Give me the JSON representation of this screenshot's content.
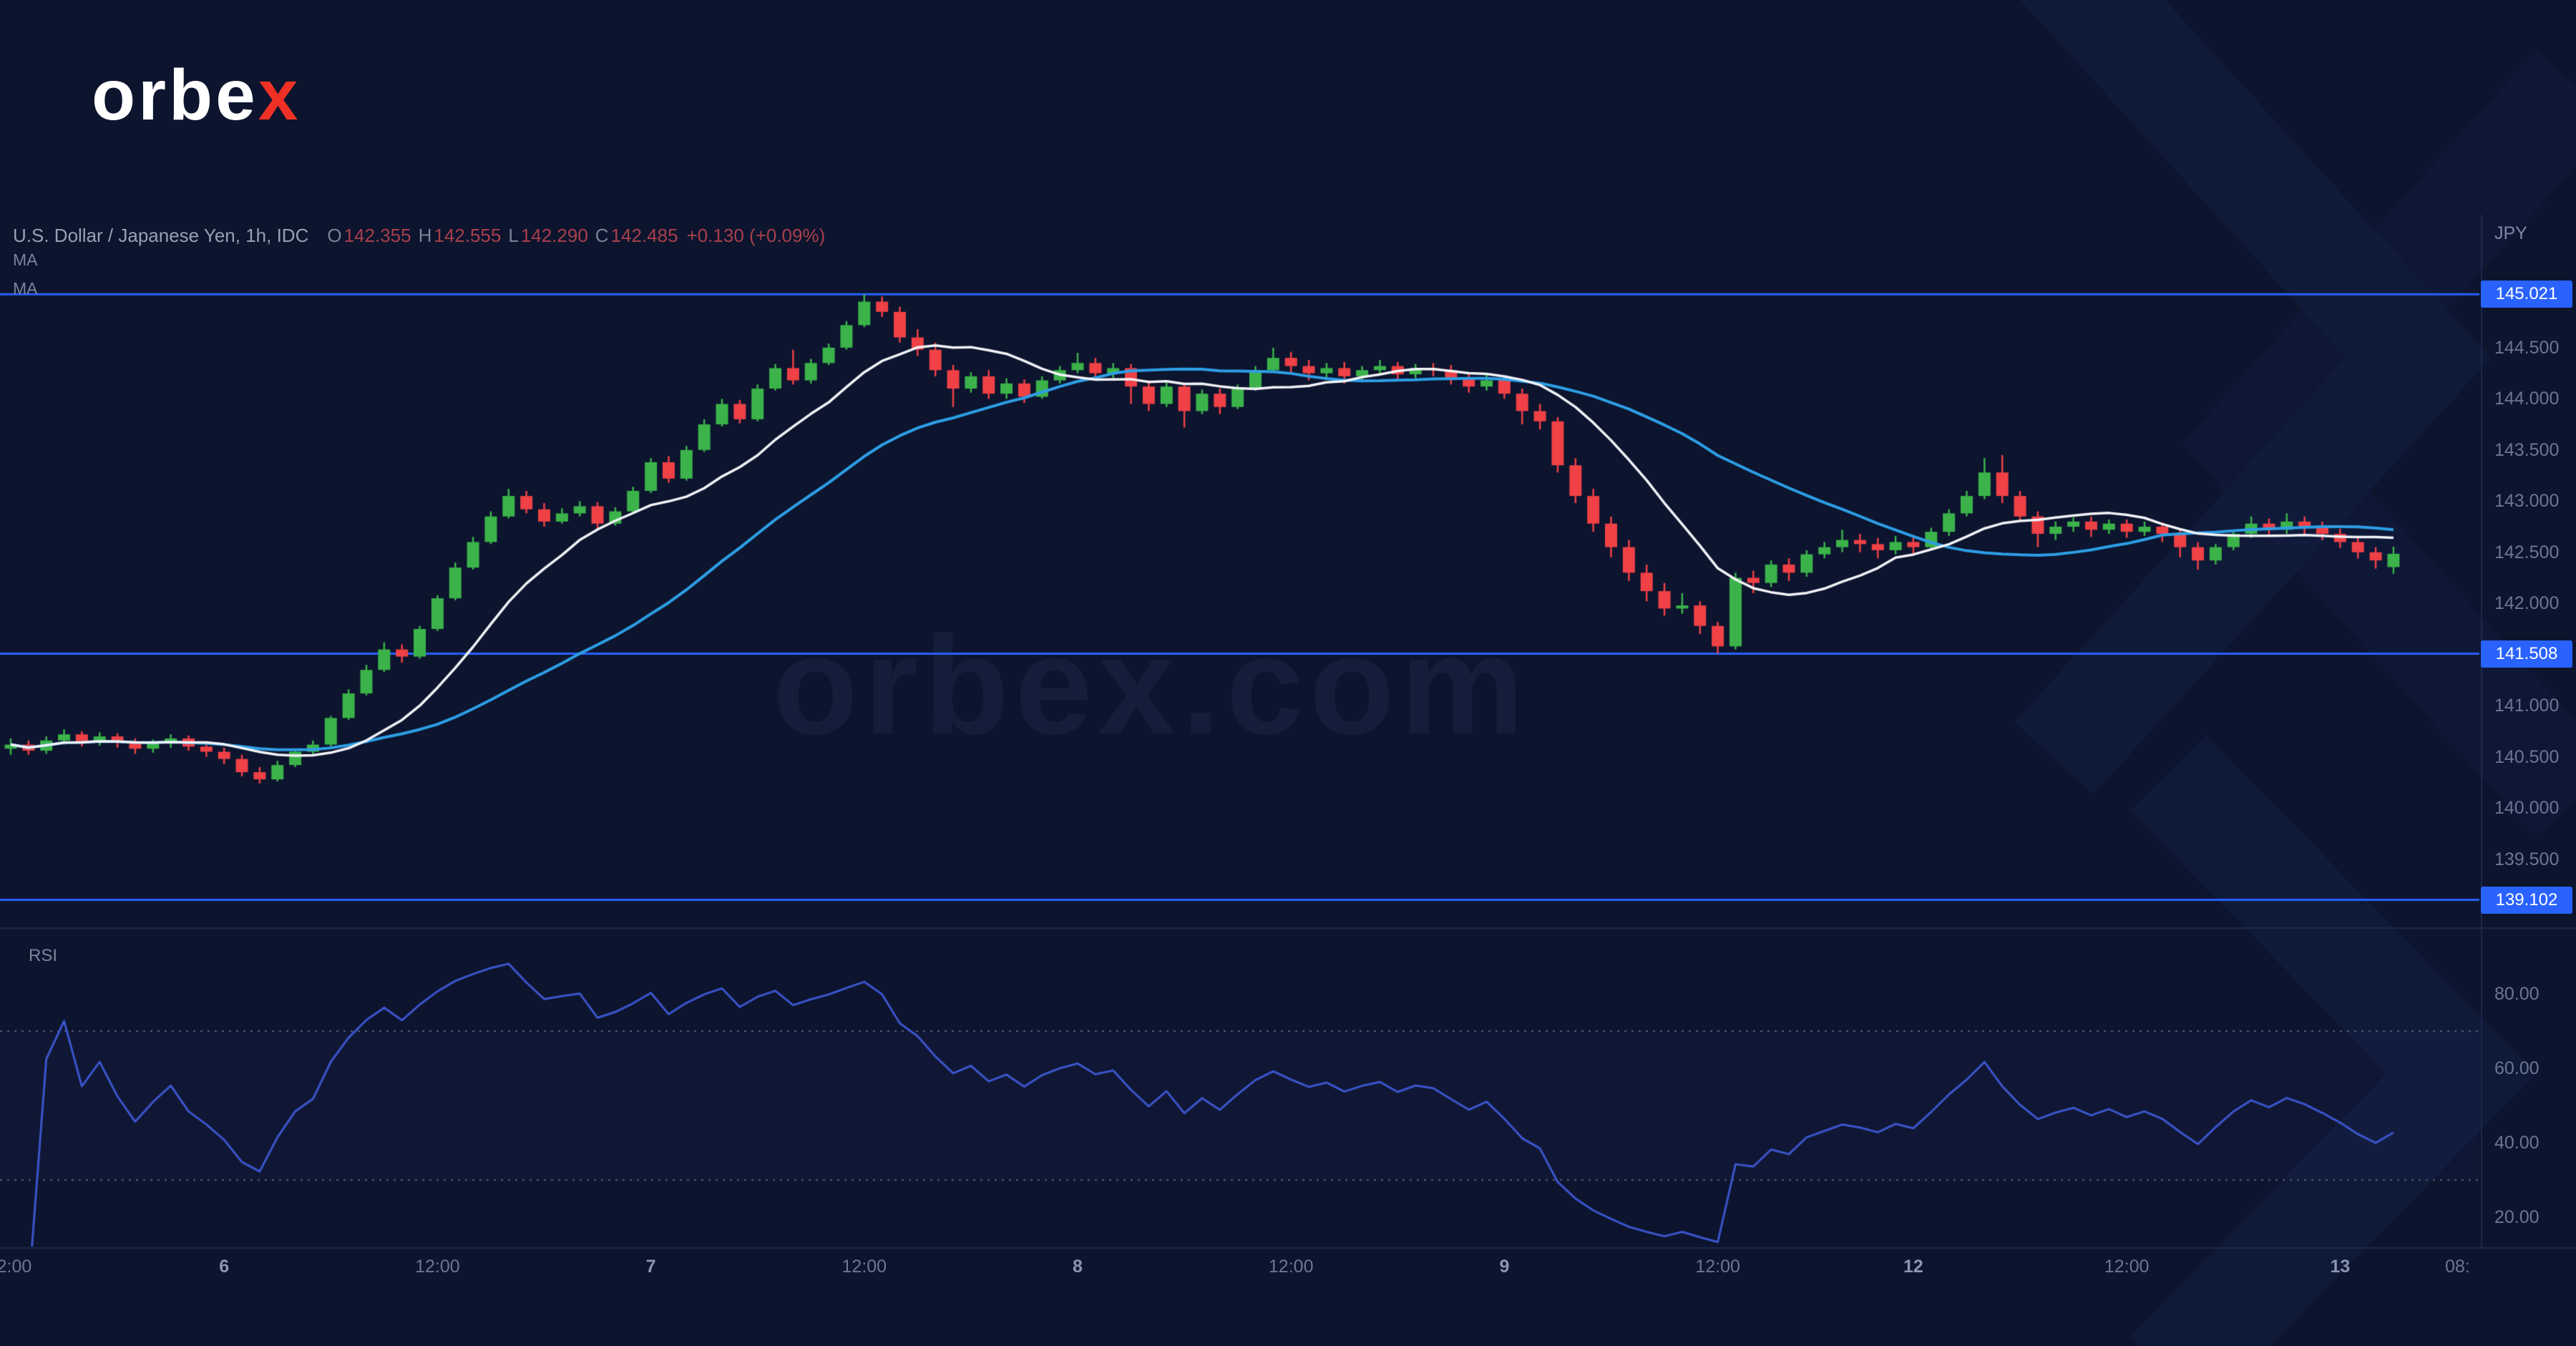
{
  "brand": {
    "logo_text": "orbe",
    "logo_accent": "x",
    "watermark": "orbex.com"
  },
  "header": {
    "symbol_title": "U.S. Dollar / Japanese Yen, 1h, IDC",
    "open_label": "O",
    "open": "142.355",
    "high_label": "H",
    "high": "142.555",
    "low_label": "L",
    "low": "142.290",
    "close_label": "C",
    "close": "142.485",
    "change": "+0.130 (+0.09%)",
    "ma_row1": "MA",
    "ma_row2": "MA"
  },
  "price_scale": {
    "currency_label": "JPY",
    "ticks": [
      {
        "text": "144.500",
        "value": 144.5
      },
      {
        "text": "144.000",
        "value": 144.0
      },
      {
        "text": "143.500",
        "value": 143.5
      },
      {
        "text": "143.000",
        "value": 143.0
      },
      {
        "text": "142.500",
        "value": 142.5
      },
      {
        "text": "142.000",
        "value": 142.0
      },
      {
        "text": "141.000",
        "value": 141.0
      },
      {
        "text": "140.500",
        "value": 140.5
      },
      {
        "text": "140.000",
        "value": 140.0
      },
      {
        "text": "139.500",
        "value": 139.5
      }
    ],
    "level_badges": [
      {
        "text": "145.021",
        "value": 145.021
      },
      {
        "text": "141.508",
        "value": 141.508
      },
      {
        "text": "139.102",
        "value": 139.102
      }
    ]
  },
  "rsi_pane": {
    "label": "RSI",
    "ticks": [
      {
        "text": "80.00",
        "value": 80
      },
      {
        "text": "60.00",
        "value": 60
      },
      {
        "text": "40.00",
        "value": 40
      },
      {
        "text": "20.00",
        "value": 20
      }
    ]
  },
  "time_scale": {
    "labels": [
      {
        "text": "2:00",
        "i": 0.2
      },
      {
        "text": "6",
        "i": 12,
        "major": true
      },
      {
        "text": "12:00",
        "i": 24
      },
      {
        "text": "7",
        "i": 36,
        "major": true
      },
      {
        "text": "12:00",
        "i": 48
      },
      {
        "text": "8",
        "i": 60,
        "major": true
      },
      {
        "text": "12:00",
        "i": 72
      },
      {
        "text": "9",
        "i": 84,
        "major": true
      },
      {
        "text": "12:00",
        "i": 96
      },
      {
        "text": "12",
        "i": 107,
        "major": true
      },
      {
        "text": "12:00",
        "i": 119
      },
      {
        "text": "13",
        "i": 131,
        "major": true
      },
      {
        "text": "08:",
        "i": 137.6
      }
    ]
  },
  "colors": {
    "background": "#0c142e",
    "up": "#3bb34a",
    "down": "#ef4146",
    "level_line": "#2962ff",
    "badge_bg": "#2962ff",
    "ma_fast": "#f2f4f8",
    "ma_slow": "#2e9fe6",
    "rsi_line": "#3c55cc",
    "rsi_level": "#545d78",
    "divider": "#1e2a4a",
    "axis_text": "#6c7694",
    "brand_red": "#ee3124"
  },
  "chart_data": {
    "type": "candlestick",
    "title": "U.S. Dollar / Japanese Yen, 1h, IDC",
    "symbol": "USD/JPY",
    "timeframe": "1h",
    "legend": [
      "MA fast (white)",
      "MA slow (blue)",
      "RSI"
    ],
    "price_range": [
      138.84,
      145.8
    ],
    "h_lines": [
      145.021,
      141.508,
      139.102
    ],
    "overlays": [
      {
        "name": "MA slow",
        "type": "SMA",
        "period": 25,
        "color": "#2e9fe6",
        "width": 4
      },
      {
        "name": "MA fast",
        "type": "SMA",
        "period": 10,
        "color": "#f2f4f8",
        "width": 3.5
      }
    ],
    "rsi": {
      "period": 14,
      "color": "#3c55cc",
      "levels": [
        70,
        30
      ]
    },
    "candles": [
      [
        140.58,
        140.68,
        140.52,
        140.62
      ],
      [
        140.62,
        140.66,
        140.52,
        140.56
      ],
      [
        140.56,
        140.7,
        140.53,
        140.66
      ],
      [
        140.66,
        140.77,
        140.62,
        140.72
      ],
      [
        140.72,
        140.75,
        140.6,
        140.65
      ],
      [
        140.65,
        140.74,
        140.61,
        140.7
      ],
      [
        140.7,
        140.73,
        140.59,
        140.64
      ],
      [
        140.64,
        140.68,
        140.53,
        140.58
      ],
      [
        140.58,
        140.67,
        140.54,
        140.63
      ],
      [
        140.63,
        140.72,
        140.59,
        140.68
      ],
      [
        140.68,
        140.71,
        140.56,
        140.6
      ],
      [
        140.6,
        140.65,
        140.5,
        140.55
      ],
      [
        140.55,
        140.59,
        140.43,
        140.48
      ],
      [
        140.48,
        140.52,
        140.31,
        140.35
      ],
      [
        140.35,
        140.4,
        140.24,
        140.28
      ],
      [
        140.28,
        140.46,
        140.26,
        140.42
      ],
      [
        140.42,
        140.58,
        140.4,
        140.55
      ],
      [
        140.55,
        140.66,
        140.52,
        140.62
      ],
      [
        140.62,
        140.9,
        140.6,
        140.88
      ],
      [
        140.88,
        141.16,
        140.86,
        141.12
      ],
      [
        141.12,
        141.4,
        141.1,
        141.35
      ],
      [
        141.35,
        141.62,
        141.33,
        141.55
      ],
      [
        141.55,
        141.6,
        141.42,
        141.48
      ],
      [
        141.48,
        141.78,
        141.46,
        141.75
      ],
      [
        141.75,
        142.08,
        141.73,
        142.05
      ],
      [
        142.05,
        142.4,
        142.03,
        142.35
      ],
      [
        142.35,
        142.65,
        142.33,
        142.6
      ],
      [
        142.6,
        142.9,
        142.58,
        142.85
      ],
      [
        142.85,
        143.12,
        142.83,
        143.05
      ],
      [
        143.05,
        143.1,
        142.88,
        142.92
      ],
      [
        142.92,
        142.98,
        142.75,
        142.8
      ],
      [
        142.8,
        142.93,
        142.78,
        142.88
      ],
      [
        142.88,
        143.0,
        142.85,
        142.95
      ],
      [
        142.95,
        142.99,
        142.72,
        142.78
      ],
      [
        142.78,
        142.94,
        142.76,
        142.9
      ],
      [
        142.9,
        143.14,
        142.88,
        143.1
      ],
      [
        143.1,
        143.42,
        143.08,
        143.38
      ],
      [
        143.38,
        143.44,
        143.18,
        143.22
      ],
      [
        143.22,
        143.54,
        143.2,
        143.5
      ],
      [
        143.5,
        143.8,
        143.48,
        143.75
      ],
      [
        143.75,
        144.0,
        143.73,
        143.95
      ],
      [
        143.95,
        143.99,
        143.76,
        143.8
      ],
      [
        143.8,
        144.14,
        143.78,
        144.1
      ],
      [
        144.1,
        144.34,
        144.08,
        144.3
      ],
      [
        144.3,
        144.48,
        144.14,
        144.18
      ],
      [
        144.18,
        144.39,
        144.15,
        144.35
      ],
      [
        144.35,
        144.54,
        144.33,
        144.5
      ],
      [
        144.5,
        144.76,
        144.48,
        144.72
      ],
      [
        144.72,
        145.02,
        144.7,
        144.95
      ],
      [
        144.95,
        145.0,
        144.8,
        144.85
      ],
      [
        144.85,
        144.9,
        144.55,
        144.6
      ],
      [
        144.6,
        144.68,
        144.42,
        144.48
      ],
      [
        144.48,
        144.55,
        144.22,
        144.28
      ],
      [
        144.28,
        144.33,
        143.92,
        144.1
      ],
      [
        144.1,
        144.26,
        144.06,
        144.22
      ],
      [
        144.22,
        144.28,
        144.0,
        144.05
      ],
      [
        144.05,
        144.2,
        144.0,
        144.15
      ],
      [
        144.15,
        144.19,
        143.96,
        144.02
      ],
      [
        144.02,
        144.22,
        144.0,
        144.18
      ],
      [
        144.18,
        144.32,
        144.15,
        144.28
      ],
      [
        144.28,
        144.45,
        144.25,
        144.35
      ],
      [
        144.35,
        144.4,
        144.18,
        144.25
      ],
      [
        144.25,
        144.35,
        144.2,
        144.3
      ],
      [
        144.3,
        144.34,
        143.95,
        144.12
      ],
      [
        144.12,
        144.18,
        143.88,
        143.95
      ],
      [
        143.95,
        144.16,
        143.92,
        144.12
      ],
      [
        144.12,
        144.15,
        143.72,
        143.88
      ],
      [
        143.88,
        144.09,
        143.85,
        144.05
      ],
      [
        144.05,
        144.1,
        143.85,
        143.92
      ],
      [
        143.92,
        144.14,
        143.9,
        144.1
      ],
      [
        144.1,
        144.32,
        144.08,
        144.28
      ],
      [
        144.28,
        144.5,
        144.26,
        144.4
      ],
      [
        144.4,
        144.46,
        144.25,
        144.32
      ],
      [
        144.32,
        144.38,
        144.18,
        144.25
      ],
      [
        144.25,
        144.35,
        144.2,
        144.3
      ],
      [
        144.3,
        144.36,
        144.15,
        144.22
      ],
      [
        144.22,
        144.32,
        144.18,
        144.28
      ],
      [
        144.28,
        144.38,
        144.24,
        144.32
      ],
      [
        144.32,
        144.36,
        144.18,
        144.24
      ],
      [
        144.24,
        144.34,
        144.2,
        144.3
      ],
      [
        144.3,
        144.35,
        144.22,
        144.28
      ],
      [
        144.28,
        144.33,
        144.14,
        144.2
      ],
      [
        144.2,
        144.26,
        144.06,
        144.12
      ],
      [
        144.12,
        144.24,
        144.08,
        144.18
      ],
      [
        144.18,
        144.22,
        144.0,
        144.05
      ],
      [
        144.05,
        144.1,
        143.75,
        143.88
      ],
      [
        143.88,
        143.95,
        143.7,
        143.78
      ],
      [
        143.78,
        143.82,
        143.28,
        143.35
      ],
      [
        143.35,
        143.42,
        142.98,
        143.05
      ],
      [
        143.05,
        143.12,
        142.7,
        142.78
      ],
      [
        142.78,
        142.85,
        142.45,
        142.55
      ],
      [
        142.55,
        142.62,
        142.22,
        142.3
      ],
      [
        142.3,
        142.38,
        142.02,
        142.12
      ],
      [
        142.12,
        142.2,
        141.88,
        141.95
      ],
      [
        141.95,
        142.1,
        141.9,
        141.98
      ],
      [
        141.98,
        142.02,
        141.7,
        141.78
      ],
      [
        141.78,
        141.82,
        141.51,
        141.58
      ],
      [
        141.58,
        142.3,
        141.55,
        142.25
      ],
      [
        142.25,
        142.32,
        142.1,
        142.2
      ],
      [
        142.2,
        142.42,
        142.16,
        142.38
      ],
      [
        142.38,
        142.44,
        142.22,
        142.3
      ],
      [
        142.3,
        142.52,
        142.26,
        142.48
      ],
      [
        142.48,
        142.6,
        142.44,
        142.55
      ],
      [
        142.55,
        142.72,
        142.5,
        142.62
      ],
      [
        142.62,
        142.68,
        142.5,
        142.58
      ],
      [
        142.58,
        142.64,
        142.44,
        142.52
      ],
      [
        142.52,
        142.66,
        142.48,
        142.6
      ],
      [
        142.6,
        142.65,
        142.48,
        142.55
      ],
      [
        142.55,
        142.74,
        142.52,
        142.7
      ],
      [
        142.7,
        142.92,
        142.66,
        142.88
      ],
      [
        142.88,
        143.1,
        142.85,
        143.05
      ],
      [
        143.05,
        143.42,
        143.02,
        143.28
      ],
      [
        143.28,
        143.45,
        142.98,
        143.05
      ],
      [
        143.05,
        143.1,
        142.8,
        142.85
      ],
      [
        142.85,
        142.9,
        142.55,
        142.68
      ],
      [
        142.68,
        142.8,
        142.62,
        142.75
      ],
      [
        142.75,
        142.84,
        142.7,
        142.8
      ],
      [
        142.8,
        142.85,
        142.65,
        142.72
      ],
      [
        142.72,
        142.82,
        142.68,
        142.78
      ],
      [
        142.78,
        142.82,
        142.64,
        142.7
      ],
      [
        142.7,
        142.8,
        142.66,
        142.75
      ],
      [
        142.75,
        142.79,
        142.6,
        142.68
      ],
      [
        142.68,
        142.72,
        142.45,
        142.55
      ],
      [
        142.55,
        142.6,
        142.33,
        142.42
      ],
      [
        142.42,
        142.58,
        142.38,
        142.55
      ],
      [
        142.55,
        142.72,
        142.52,
        142.68
      ],
      [
        142.68,
        142.85,
        142.64,
        142.78
      ],
      [
        142.78,
        142.83,
        142.66,
        142.72
      ],
      [
        142.72,
        142.88,
        142.68,
        142.8
      ],
      [
        142.8,
        142.85,
        142.68,
        142.75
      ],
      [
        142.75,
        142.8,
        142.62,
        142.68
      ],
      [
        142.68,
        142.73,
        142.54,
        142.6
      ],
      [
        142.6,
        142.65,
        142.44,
        142.5
      ],
      [
        142.5,
        142.55,
        142.34,
        142.42
      ],
      [
        142.355,
        142.555,
        142.29,
        142.485
      ]
    ]
  }
}
